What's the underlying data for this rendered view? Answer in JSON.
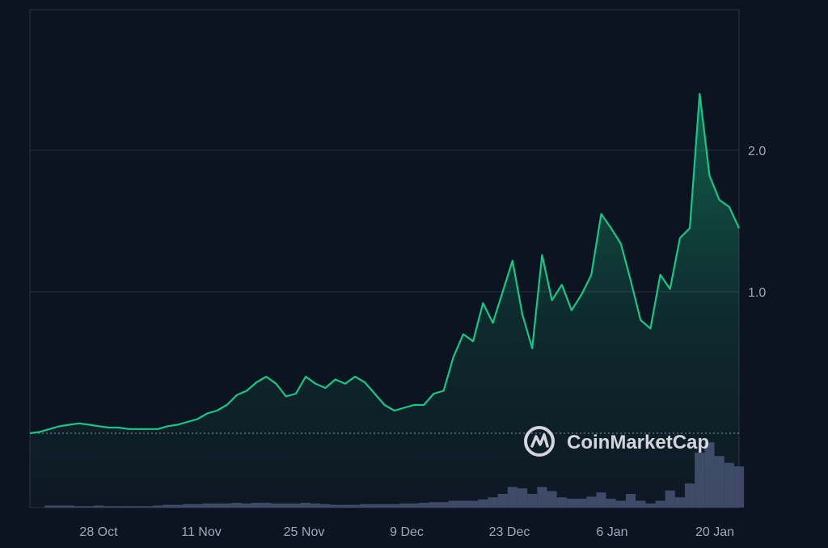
{
  "chart_data": {
    "type": "area",
    "x_ticks": [
      "28 Oct",
      "11 Nov",
      "25 Nov",
      "9 Dec",
      "23 Dec",
      "6 Jan",
      "20 Jan"
    ],
    "y_ticks": [
      "1.0",
      "2.0"
    ],
    "ylim": [
      0,
      2.75
    ],
    "baseline_value": 0,
    "grid": true,
    "watermark": "CoinMarketCap",
    "colors": {
      "background": "#0d1421",
      "line": "#16c784",
      "volume": "#4a4f73",
      "grid": "#2b3040",
      "axis_text": "#a1a7bb"
    },
    "series": [
      {
        "values": [
          0,
          0.01,
          0.03,
          0.05,
          0.06,
          0.07,
          0.06,
          0.05,
          0.04,
          0.04,
          0.03,
          0.03,
          0.03,
          0.03,
          0.05,
          0.06,
          0.08,
          0.1,
          0.14,
          0.16,
          0.2,
          0.27,
          0.3,
          0.36,
          0.4,
          0.35,
          0.26,
          0.28,
          0.4,
          0.35,
          0.32,
          0.38,
          0.35,
          0.4,
          0.36,
          0.28,
          0.2,
          0.16,
          0.18,
          0.2,
          0.2,
          0.28,
          0.3,
          0.54,
          0.7,
          0.65,
          0.92,
          0.78,
          1.0,
          1.22,
          0.84,
          0.6,
          1.26,
          0.94,
          1.05,
          0.87,
          0.98,
          1.12,
          1.55,
          1.45,
          1.34,
          1.08,
          0.8,
          0.74,
          1.12,
          1.02,
          1.38,
          1.45,
          2.4,
          1.82,
          1.65,
          1.6,
          1.45
        ]
      }
    ],
    "volume": {
      "values": [
        0,
        0,
        0.03,
        0.03,
        0.03,
        0.02,
        0.02,
        0.03,
        0.02,
        0.02,
        0.02,
        0.02,
        0.02,
        0.03,
        0.04,
        0.04,
        0.05,
        0.05,
        0.06,
        0.06,
        0.06,
        0.07,
        0.06,
        0.07,
        0.07,
        0.06,
        0.06,
        0.06,
        0.07,
        0.06,
        0.05,
        0.04,
        0.04,
        0.04,
        0.05,
        0.05,
        0.05,
        0.05,
        0.06,
        0.06,
        0.07,
        0.08,
        0.08,
        0.1,
        0.1,
        0.1,
        0.12,
        0.15,
        0.2,
        0.3,
        0.28,
        0.2,
        0.3,
        0.24,
        0.15,
        0.13,
        0.13,
        0.16,
        0.22,
        0.13,
        0.1,
        0.2,
        0.1,
        0.06,
        0.1,
        0.25,
        0.15,
        0.35,
        0.8,
        0.95,
        0.75,
        0.65,
        0.6
      ]
    }
  }
}
